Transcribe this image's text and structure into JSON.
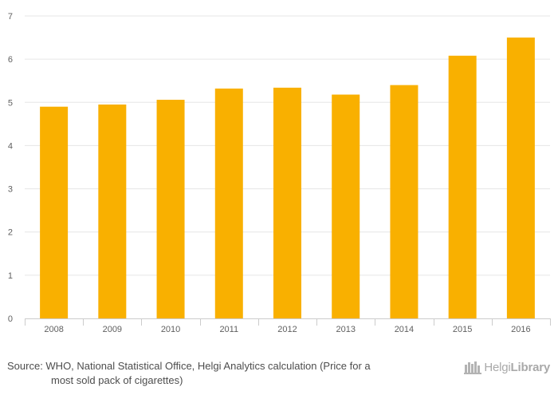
{
  "chart_data": {
    "type": "bar",
    "categories": [
      "2008",
      "2009",
      "2010",
      "2011",
      "2012",
      "2013",
      "2014",
      "2015",
      "2016"
    ],
    "values": [
      4.9,
      4.95,
      5.06,
      5.32,
      5.34,
      5.18,
      5.4,
      6.08,
      6.5
    ],
    "y_ticks": [
      "0",
      "1",
      "2",
      "3",
      "4",
      "5",
      "6",
      "7"
    ],
    "ylim": [
      0,
      7
    ],
    "title": "",
    "xlabel": "",
    "ylabel": "",
    "grid": true,
    "colors": {
      "bar": "#f9b000",
      "grid": "#e6e6e6",
      "axis": "#cccccc",
      "tick_text": "#606060"
    }
  },
  "footer": {
    "source_line1": "Source: WHO, National Statistical Office, Helgi Analytics calculation (Price for a",
    "source_line2": "most sold pack of cigarettes)",
    "brand_regular": "Helgi",
    "brand_bold": "Library",
    "brand_icon": "library-books-icon"
  }
}
